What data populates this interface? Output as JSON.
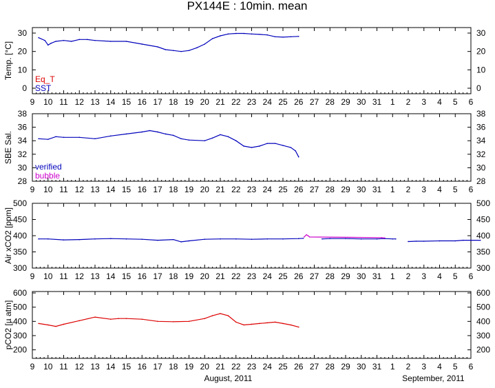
{
  "title": "PX144E : 10min. mean",
  "x_axis": {
    "day_labels": [
      "9",
      "10",
      "11",
      "12",
      "13",
      "14",
      "15",
      "16",
      "17",
      "18",
      "19",
      "20",
      "21",
      "22",
      "23",
      "24",
      "25",
      "26",
      "27",
      "28",
      "29",
      "30",
      "31",
      "1",
      "2",
      "3",
      "4",
      "5",
      "6"
    ],
    "month_labels": [
      {
        "text": "August, 2011",
        "day_index": 12.5
      },
      {
        "text": "September, 2011",
        "day_index": 25.6
      }
    ]
  },
  "colors": {
    "red": "#dd0000",
    "blue": "#0000bb",
    "magenta": "#cc00cc",
    "axis": "#000000"
  },
  "chart_data": [
    {
      "type": "line",
      "name": "temperature",
      "ylabel": "Temp. [°C]",
      "ylim": [
        -3,
        33
      ],
      "yticks": [
        0,
        10,
        20,
        30
      ],
      "legend": [
        {
          "text": "Eq_T",
          "color": "#dd0000"
        },
        {
          "text": "SST",
          "color": "#0000bb"
        }
      ],
      "legend_placement": "bottom-left",
      "series": [
        {
          "name": "Eq_T",
          "color": "#dd0000",
          "x": [],
          "values": []
        },
        {
          "name": "SST",
          "color": "#0000bb",
          "x": [
            0.4,
            0.8,
            1.0,
            1.2,
            1.5,
            2.0,
            2.5,
            3.0,
            3.5,
            4.0,
            5.0,
            6.0,
            7.0,
            8.0,
            8.5,
            9.0,
            9.5,
            10.0,
            10.5,
            11.0,
            11.5,
            12.0,
            12.5,
            13.0,
            13.5,
            14.0,
            14.5,
            15.0,
            15.5,
            16.0,
            16.5,
            17.0
          ],
          "values": [
            27.5,
            26.0,
            23.5,
            24.5,
            25.5,
            26.0,
            25.5,
            26.5,
            26.5,
            26.0,
            25.5,
            25.5,
            24.0,
            22.5,
            21.0,
            20.5,
            20.0,
            20.5,
            22.0,
            24.0,
            27.0,
            28.5,
            29.5,
            29.8,
            29.8,
            29.5,
            29.3,
            29.0,
            28.0,
            27.8,
            28.0,
            28.2
          ]
        }
      ]
    },
    {
      "type": "line",
      "name": "salinity",
      "ylabel": "SBE Sal.",
      "ylim": [
        28,
        38
      ],
      "yticks": [
        28,
        30,
        32,
        34,
        36,
        38
      ],
      "legend": [
        {
          "text": "verified",
          "color": "#0000bb"
        },
        {
          "text": "bubble",
          "color": "#cc00cc"
        }
      ],
      "legend_placement": "bottom-left",
      "series": [
        {
          "name": "verified",
          "color": "#0000bb",
          "x": [
            0.4,
            1.0,
            1.5,
            2.0,
            3.0,
            4.0,
            5.0,
            6.0,
            7.0,
            7.5,
            8.0,
            8.5,
            9.0,
            9.5,
            10.0,
            11.0,
            11.5,
            12.0,
            12.5,
            13.0,
            13.5,
            14.0,
            14.5,
            15.0,
            15.5,
            16.0,
            16.5,
            16.8,
            17.0
          ],
          "values": [
            34.3,
            34.2,
            34.6,
            34.5,
            34.5,
            34.3,
            34.7,
            35.0,
            35.3,
            35.5,
            35.3,
            35.0,
            34.8,
            34.3,
            34.1,
            34.0,
            34.4,
            34.9,
            34.6,
            34.0,
            33.2,
            33.0,
            33.2,
            33.6,
            33.6,
            33.3,
            33.0,
            32.5,
            31.6
          ]
        },
        {
          "name": "bubble",
          "color": "#cc00cc",
          "x": [],
          "values": []
        }
      ]
    },
    {
      "type": "line",
      "name": "air-xco2",
      "ylabel": "Air xCO2 [ppm]",
      "ylim": [
        300,
        500
      ],
      "yticks": [
        300,
        350,
        400,
        450,
        500
      ],
      "series": [
        {
          "name": "verified",
          "color": "#0000bb",
          "x": [
            0.4,
            1.0,
            2.0,
            3.0,
            4.0,
            5.0,
            6.0,
            7.0,
            8.0,
            9.0,
            9.5,
            10.0,
            11.0,
            12.0,
            13.0,
            14.0,
            15.0,
            16.0,
            17.0,
            17.3,
            null,
            18.5,
            19.0,
            20.0,
            21.0,
            22.0,
            22.5,
            23.0,
            23.2,
            null,
            24.0,
            24.5,
            25.0,
            26.0,
            27.0,
            27.5,
            28.0,
            28.6
          ],
          "values": [
            390,
            390,
            387,
            388,
            390,
            391,
            390,
            389,
            386,
            388,
            381,
            384,
            389,
            390,
            390,
            389,
            390,
            390,
            391,
            392,
            null,
            390,
            391,
            391,
            390,
            390,
            391,
            390,
            390,
            null,
            382,
            383,
            383,
            384,
            384,
            386,
            386,
            386
          ]
        },
        {
          "name": "bubble",
          "color": "#cc00cc",
          "x": [
            17.35,
            17.5,
            17.6,
            17.7,
            22.3,
            22.5
          ],
          "values": [
            396,
            403,
            400,
            396,
            394,
            393
          ]
        }
      ]
    },
    {
      "type": "line",
      "name": "pco2",
      "ylabel": "pCO2 [µ atm]",
      "ylim": [
        140,
        610
      ],
      "yticks": [
        200,
        300,
        400,
        500,
        600
      ],
      "series": [
        {
          "name": "pCO2",
          "color": "#dd0000",
          "x": [
            0.4,
            1.0,
            1.5,
            2.0,
            3.0,
            4.0,
            5.0,
            5.5,
            6.0,
            7.0,
            8.0,
            9.0,
            10.0,
            11.0,
            11.5,
            12.0,
            12.5,
            13.0,
            13.5,
            14.0,
            14.5,
            15.0,
            15.5,
            16.0,
            16.5,
            17.0
          ],
          "values": [
            385,
            375,
            365,
            380,
            405,
            430,
            415,
            420,
            420,
            415,
            400,
            398,
            400,
            420,
            440,
            455,
            440,
            395,
            375,
            380,
            385,
            390,
            395,
            385,
            375,
            360
          ]
        }
      ]
    }
  ]
}
